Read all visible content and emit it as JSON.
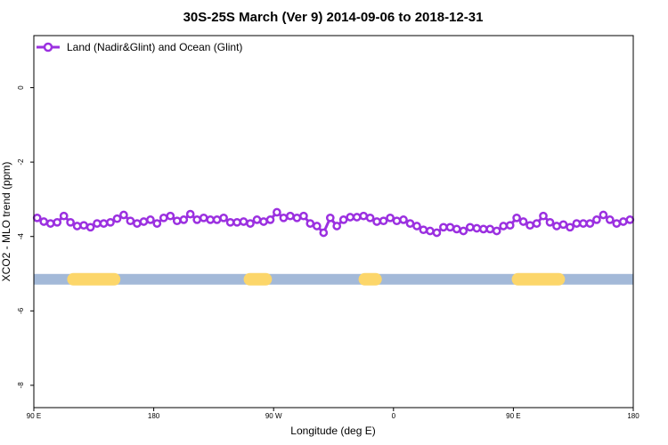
{
  "chart_data": {
    "type": "line",
    "title": "30S-25S March (Ver 9)   2014-09-06 to 2018-12-31",
    "xlabel": "Longitude (deg E)",
    "ylabel": "XCO2 - MLO trend (ppm)",
    "xlim": [
      90,
      450
    ],
    "ylim": [
      -8.6,
      1.4
    ],
    "x_ticks": [
      {
        "value": 90,
        "label": "90 E"
      },
      {
        "value": 162,
        "label": "180"
      },
      {
        "value": 234,
        "label": "90 W"
      },
      {
        "value": 306,
        "label": "0"
      },
      {
        "value": 378,
        "label": "90 E"
      },
      {
        "value": 450,
        "label": "180"
      }
    ],
    "y_ticks": [
      0,
      -2,
      -4,
      -6,
      -8
    ],
    "grid": false,
    "legend_position": "top-left",
    "series": [
      {
        "name": "Land (Nadir&Glint) and Ocean (Glint)",
        "color": "#9b30e0",
        "x": [
          92,
          96,
          100,
          104,
          108,
          112,
          116,
          120,
          124,
          128,
          132,
          136,
          140,
          144,
          148,
          152,
          156,
          160,
          164,
          168,
          172,
          176,
          180,
          184,
          188,
          192,
          196,
          200,
          204,
          208,
          212,
          216,
          220,
          224,
          228,
          232,
          236,
          240,
          244,
          248,
          252,
          256,
          260,
          264,
          268,
          272,
          276,
          280,
          284,
          288,
          292,
          296,
          300,
          304,
          308,
          312,
          316,
          320,
          324,
          328,
          332,
          336,
          340,
          344,
          348,
          352,
          356,
          360,
          364,
          368,
          372,
          376,
          380,
          384,
          388,
          392,
          396,
          400,
          404,
          408,
          412,
          416,
          420,
          424,
          428,
          432,
          436,
          440,
          444,
          448
        ],
        "values": [
          -3.5,
          -3.6,
          -3.65,
          -3.62,
          -3.45,
          -3.62,
          -3.72,
          -3.7,
          -3.75,
          -3.65,
          -3.65,
          -3.62,
          -3.52,
          -3.42,
          -3.58,
          -3.65,
          -3.6,
          -3.55,
          -3.65,
          -3.5,
          -3.45,
          -3.58,
          -3.55,
          -3.4,
          -3.55,
          -3.5,
          -3.55,
          -3.55,
          -3.5,
          -3.62,
          -3.62,
          -3.6,
          -3.65,
          -3.55,
          -3.6,
          -3.55,
          -3.35,
          -3.5,
          -3.45,
          -3.5,
          -3.45,
          -3.65,
          -3.72,
          -3.9,
          -3.5,
          -3.72,
          -3.55,
          -3.48,
          -3.48,
          -3.45,
          -3.5,
          -3.6,
          -3.58,
          -3.5,
          -3.58,
          -3.55,
          -3.65,
          -3.72,
          -3.82,
          -3.85,
          -3.9,
          -3.75,
          -3.75,
          -3.8,
          -3.85,
          -3.75,
          -3.78,
          -3.8,
          -3.8,
          -3.85,
          -3.72,
          -3.7,
          -3.5,
          -3.6,
          -3.7,
          -3.65,
          -3.45,
          -3.62,
          -3.72,
          -3.68,
          -3.75,
          -3.65,
          -3.65,
          -3.65,
          -3.55,
          -3.42,
          -3.55,
          -3.65,
          -3.6,
          -3.55
        ]
      }
    ],
    "surface_band": {
      "y": -5.15,
      "base_color": "#a3b9d8",
      "land_color": "#fcd66a",
      "land_segments": [
        [
          110,
          142
        ],
        [
          216,
          233
        ],
        [
          285,
          299
        ],
        [
          377,
          409
        ]
      ]
    }
  }
}
